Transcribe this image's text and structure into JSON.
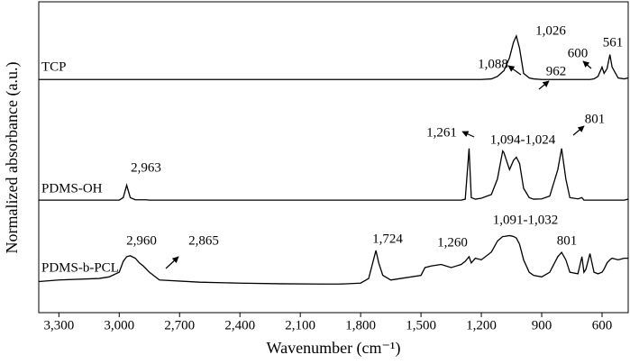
{
  "chart_data": {
    "type": "line",
    "x_label": "Wavenumber (cm⁻¹)",
    "y_label": "Normalized absorbance (a.u.)",
    "xlim": [
      3400,
      470
    ],
    "ylim": [
      0,
      10
    ],
    "x_reversed": true,
    "xticks": [
      {
        "value": 3300,
        "label": "3,300"
      },
      {
        "value": 3000,
        "label": "3,000"
      },
      {
        "value": 2700,
        "label": "2,700"
      },
      {
        "value": 2400,
        "label": "2,400"
      },
      {
        "value": 2100,
        "label": "2,100"
      },
      {
        "value": 1800,
        "label": "1,800"
      },
      {
        "value": 1500,
        "label": "1,500"
      },
      {
        "value": 1200,
        "label": "1,200"
      },
      900,
      600
    ],
    "x": [
      3400,
      3300,
      3100,
      3050,
      3000,
      2980,
      2963,
      2945,
      2920,
      2900,
      2880,
      2865,
      2850,
      2800,
      2600,
      2400,
      2200,
      2000,
      1900,
      1800,
      1760,
      1740,
      1724,
      1710,
      1690,
      1650,
      1600,
      1500,
      1480,
      1450,
      1400,
      1350,
      1300,
      1280,
      1261,
      1250,
      1230,
      1200,
      1150,
      1120,
      1094,
      1088,
      1060,
      1040,
      1026,
      1010,
      990,
      962,
      940,
      900,
      860,
      820,
      801,
      780,
      760,
      720,
      700,
      690,
      680,
      660,
      640,
      620,
      600,
      590,
      575,
      561,
      550,
      520,
      490,
      470
    ],
    "series": [
      {
        "name": "TCP",
        "color": "#000000",
        "values": [
          7.5,
          7.5,
          7.5,
          7.5,
          7.5,
          7.5,
          7.5,
          7.5,
          7.5,
          7.5,
          7.5,
          7.5,
          7.5,
          7.5,
          7.5,
          7.5,
          7.5,
          7.5,
          7.5,
          7.5,
          7.5,
          7.5,
          7.5,
          7.5,
          7.5,
          7.5,
          7.5,
          7.5,
          7.5,
          7.5,
          7.5,
          7.5,
          7.5,
          7.5,
          7.5,
          7.5,
          7.5,
          7.5,
          7.52,
          7.6,
          7.75,
          7.78,
          8.2,
          8.7,
          8.9,
          8.5,
          7.7,
          7.55,
          7.52,
          7.5,
          7.5,
          7.5,
          7.5,
          7.5,
          7.5,
          7.5,
          7.5,
          7.5,
          7.5,
          7.5,
          7.52,
          7.6,
          7.9,
          7.7,
          7.85,
          8.3,
          7.9,
          7.55,
          7.52,
          7.55
        ]
      },
      {
        "name": "PDMS-OH",
        "color": "#000000",
        "values": [
          3.62,
          3.62,
          3.62,
          3.62,
          3.62,
          3.7,
          4.1,
          3.7,
          3.63,
          3.63,
          3.63,
          3.63,
          3.62,
          3.62,
          3.62,
          3.62,
          3.62,
          3.62,
          3.62,
          3.62,
          3.62,
          3.62,
          3.62,
          3.62,
          3.62,
          3.62,
          3.62,
          3.62,
          3.62,
          3.62,
          3.62,
          3.62,
          3.62,
          3.65,
          5.28,
          3.7,
          3.65,
          3.68,
          3.8,
          4.3,
          5.2,
          5.15,
          4.6,
          4.9,
          5.0,
          4.8,
          4.0,
          3.7,
          3.65,
          3.66,
          3.75,
          4.6,
          5.28,
          4.3,
          3.7,
          3.66,
          3.7,
          3.62,
          3.62,
          3.62,
          3.62,
          3.62,
          3.62,
          3.62,
          3.62,
          3.62,
          3.62,
          3.62,
          3.62,
          3.65
        ]
      },
      {
        "name": "PDMS-b-PCL",
        "color": "#000000",
        "values": [
          1.0,
          1.05,
          1.1,
          1.15,
          1.3,
          1.65,
          1.8,
          1.83,
          1.75,
          1.6,
          1.5,
          1.4,
          1.3,
          1.05,
          0.98,
          0.95,
          0.93,
          0.92,
          0.92,
          0.95,
          1.1,
          1.6,
          2.0,
          1.6,
          1.2,
          1.05,
          1.1,
          1.2,
          1.45,
          1.5,
          1.55,
          1.45,
          1.55,
          1.65,
          1.8,
          1.6,
          1.75,
          1.7,
          1.95,
          2.3,
          2.45,
          2.45,
          2.48,
          2.45,
          2.4,
          2.2,
          1.7,
          1.3,
          1.2,
          1.15,
          1.3,
          1.8,
          1.94,
          1.7,
          1.3,
          1.25,
          1.8,
          1.3,
          1.4,
          1.9,
          1.3,
          1.25,
          1.3,
          1.4,
          1.6,
          1.7,
          1.75,
          1.7,
          1.75,
          1.75
        ]
      }
    ],
    "annotations": [
      "1,026",
      "1,088",
      "962",
      "600",
      "561",
      "2,963",
      "1,261",
      "1,094-1,024",
      "801",
      "2,960",
      "2,865",
      "1,724",
      "1,260",
      "1,091-1,032",
      "801"
    ]
  }
}
